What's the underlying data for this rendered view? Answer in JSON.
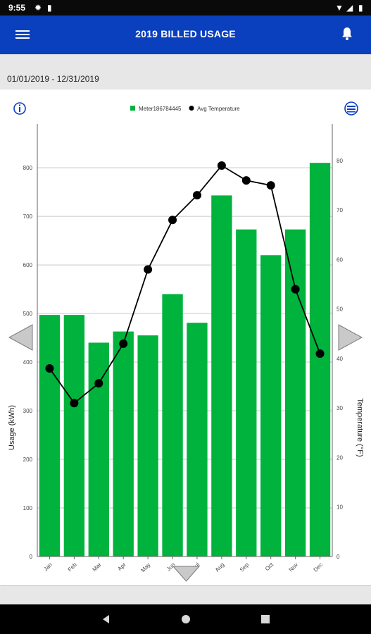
{
  "status_bar": {
    "time": "9:55"
  },
  "app_bar": {
    "title": "2019 BILLED USAGE"
  },
  "date_range": "01/01/2019 - 12/31/2019",
  "colors": {
    "app_bar": "#0a3fbd",
    "bar": "#00b33c",
    "line": "#000000"
  },
  "icons": [
    "settings-gear-icon",
    "sim-card-icon",
    "wifi-icon",
    "signal-icon",
    "battery-icon",
    "menu-icon",
    "bell-icon",
    "info-icon",
    "chart-toggle-icon",
    "left-arrow-icon",
    "right-arrow-icon",
    "down-arrow-icon",
    "back-icon",
    "home-icon",
    "recents-icon"
  ],
  "chart_data": {
    "type": "bar",
    "categories": [
      "Jan",
      "Feb",
      "Mar",
      "Apr",
      "May",
      "Jun",
      "Jul",
      "Aug",
      "Sep",
      "Oct",
      "Nov",
      "Dec"
    ],
    "series": [
      {
        "name": "Meter186784445",
        "type": "bar",
        "values": [
          497,
          497,
          440,
          463,
          455,
          540,
          481,
          743,
          673,
          620,
          673,
          810
        ]
      },
      {
        "name": "Avg Temperature",
        "type": "line",
        "axis": "right",
        "values": [
          38,
          31,
          35,
          43,
          58,
          68,
          73,
          79,
          76,
          75,
          54,
          41
        ]
      }
    ],
    "ylabel": "Usage (kWh)",
    "y2label": "Temperature (°F)",
    "ylim": [
      0,
      890
    ],
    "y2lim": [
      0,
      87.4
    ],
    "yticks": [
      0,
      100,
      200,
      300,
      400,
      500,
      600,
      700,
      800
    ],
    "y2ticks": [
      0,
      10,
      20,
      30,
      40,
      50,
      60,
      70,
      80
    ],
    "grid": true,
    "legend": "top"
  }
}
